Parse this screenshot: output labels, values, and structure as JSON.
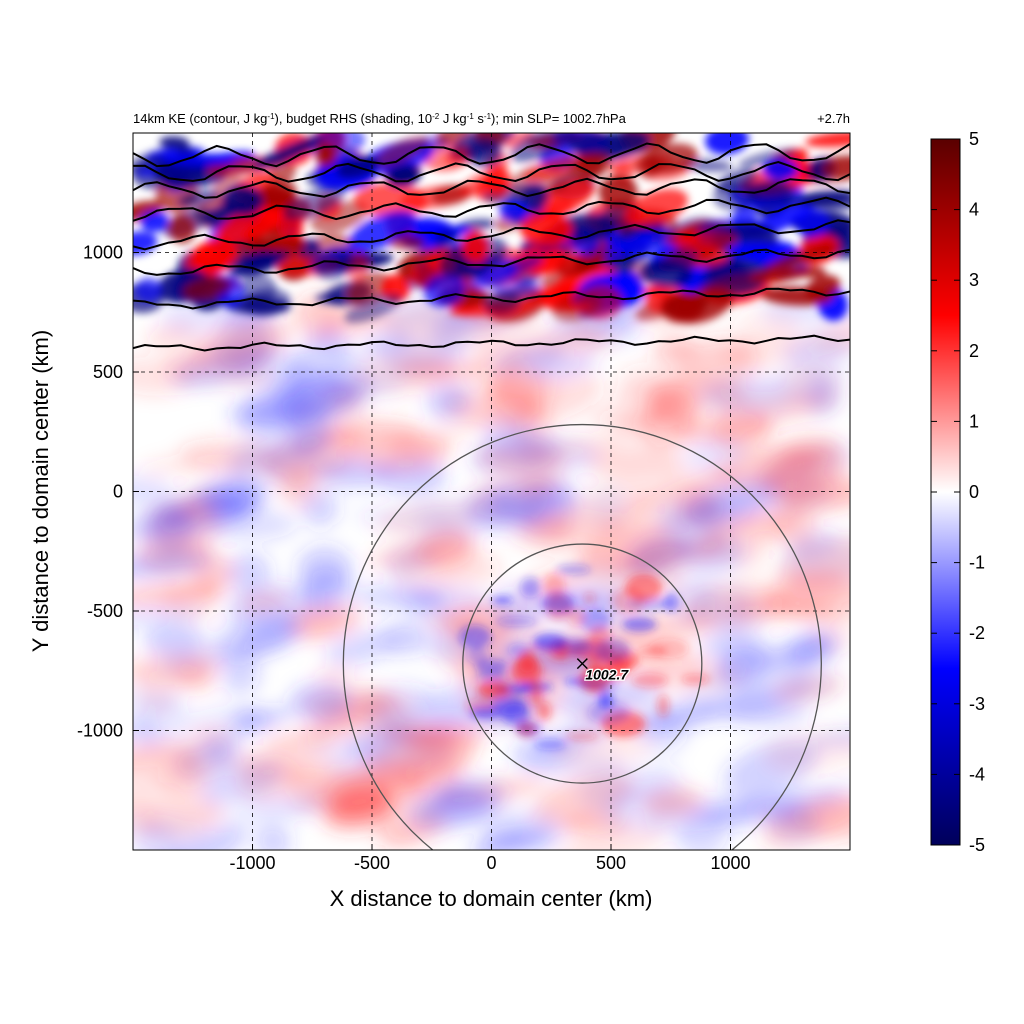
{
  "chart_data": {
    "type": "heatmap",
    "title_left": {
      "parts": [
        {
          "text": "14km KE (contour, J kg"
        },
        {
          "text": "-1",
          "sup": true
        },
        {
          "text": "), budget RHS (shading, 10"
        },
        {
          "text": "-2",
          "sup": true
        },
        {
          "text": " J kg"
        },
        {
          "text": "-1",
          "sup": true
        },
        {
          "text": " s"
        },
        {
          "text": "-1",
          "sup": true
        },
        {
          "text": "); min SLP= 1002.7hPa"
        }
      ]
    },
    "title_right": "+2.7h",
    "xlabel": "X distance to domain center (km)",
    "ylabel": "Y distance to domain center (km)",
    "xlim": [
      -1500,
      1500
    ],
    "ylim": [
      -1500,
      1500
    ],
    "x_ticks": [
      -1000,
      -500,
      0,
      500,
      1000
    ],
    "y_ticks": [
      -1000,
      -500,
      0,
      500,
      1000
    ],
    "grid": true,
    "grid_style": "dashed",
    "colorbar": {
      "min": -5,
      "max": 5,
      "ticks": [
        -5,
        -4,
        -3,
        -2,
        -1,
        0,
        1,
        2,
        3,
        4,
        5
      ],
      "colormap": "blue-white-red",
      "colors": [
        "#00005a",
        "#0000ff",
        "#ffffff",
        "#ff0000",
        "#5a0000"
      ]
    },
    "center_marker": {
      "x": 380,
      "y": -720,
      "label": "1002.7"
    },
    "range_circles": [
      {
        "cx": 380,
        "cy": -720,
        "r": 500
      },
      {
        "cx": 380,
        "cy": -720,
        "r": 1000
      }
    ],
    "ke_contours_y_at_x_edges": [
      {
        "y_left": 600,
        "y_right": 640
      },
      {
        "y_left": 780,
        "y_right": 840
      },
      {
        "y_left": 920,
        "y_right": 1000
      },
      {
        "y_left": 1040,
        "y_right": 1110
      },
      {
        "y_left": 1160,
        "y_right": 1200
      },
      {
        "y_left": 1260,
        "y_right": 1280
      },
      {
        "y_left": 1330,
        "y_right": 1340
      },
      {
        "y_left": 1400,
        "y_right": 1420
      }
    ]
  }
}
